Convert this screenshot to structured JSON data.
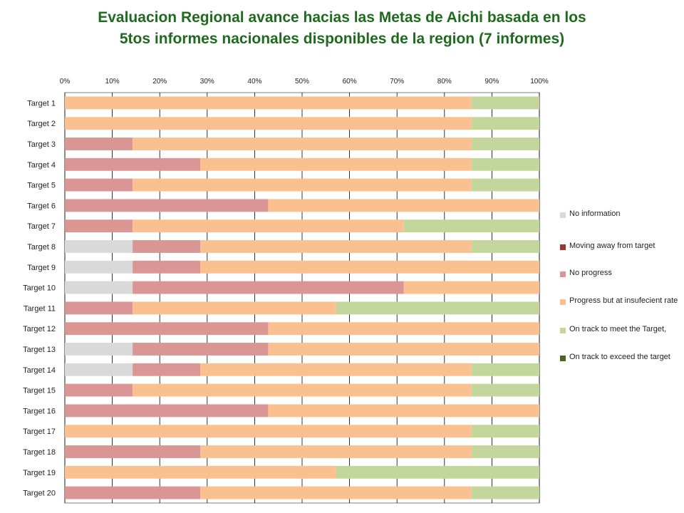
{
  "title_lines": [
    "Evaluacion Regional avance hacias las Metas de Aichi basada en los",
    "5tos informes nacionales disponibles de la region (7 informes)"
  ],
  "colors": {
    "no_information": "#d9d9d9",
    "moving_away": "#953735",
    "no_progress": "#d99694",
    "progress_insufficient": "#fac090",
    "on_track": "#c3d69b",
    "exceed": "#4f6228",
    "grid": "#000000"
  },
  "chart_data": {
    "type": "bar",
    "orientation": "horizontal",
    "stacked": "percent",
    "title": "Evaluacion Regional avance hacias las Metas de Aichi basada en los 5tos informes nacionales disponibles de la region (7 informes)",
    "categories": [
      "Target 1",
      "Target 2",
      "Target 3",
      "Target 4",
      "Target 5",
      "Target 6",
      "Target 7",
      "Target 8",
      "Target 9",
      "Target 10",
      "Target 11",
      "Target 12",
      "Target 13",
      "Target 14",
      "Target 15",
      "Target 16",
      "Target 17",
      "Target 18",
      "Target 19",
      "Target 20"
    ],
    "x_ticks": [
      "0%",
      "10%",
      "20%",
      "30%",
      "40%",
      "50%",
      "60%",
      "70%",
      "80%",
      "90%",
      "100%"
    ],
    "xlim": [
      0,
      100
    ],
    "grid": true,
    "legend_position": "right",
    "series": [
      {
        "name": "No information",
        "color": "#d9d9d9",
        "values": [
          0,
          0,
          0,
          0,
          0,
          0,
          0,
          1,
          1,
          1,
          0,
          0,
          1,
          1,
          0,
          0,
          0,
          0,
          0,
          0
        ]
      },
      {
        "name": "Moving away from  target",
        "color": "#953735",
        "values": [
          0,
          0,
          0,
          0,
          0,
          0,
          0,
          0,
          0,
          0,
          0,
          0,
          0,
          0,
          0,
          0,
          0,
          0,
          0,
          0
        ]
      },
      {
        "name": "No progress",
        "color": "#d99694",
        "values": [
          0,
          0,
          1,
          2,
          1,
          3,
          1,
          1,
          1,
          4,
          1,
          3,
          2,
          1,
          1,
          3,
          0,
          2,
          0,
          2
        ]
      },
      {
        "name": "Progress but at insufecient rate",
        "color": "#fac090",
        "values": [
          6,
          6,
          5,
          4,
          5,
          4,
          4,
          4,
          5,
          2,
          3,
          4,
          4,
          4,
          5,
          4,
          6,
          4,
          4,
          4
        ]
      },
      {
        "name": "On track to meet the Target,",
        "color": "#c3d69b",
        "values": [
          1,
          1,
          1,
          1,
          1,
          0,
          2,
          1,
          0,
          0,
          3,
          0,
          0,
          1,
          1,
          0,
          1,
          1,
          3,
          1
        ]
      },
      {
        "name": "On track to exceed the target",
        "color": "#4f6228",
        "values": [
          0,
          0,
          0,
          0,
          0,
          0,
          0,
          0,
          0,
          0,
          0,
          0,
          0,
          0,
          0,
          0,
          0,
          0,
          0,
          0
        ]
      }
    ]
  }
}
